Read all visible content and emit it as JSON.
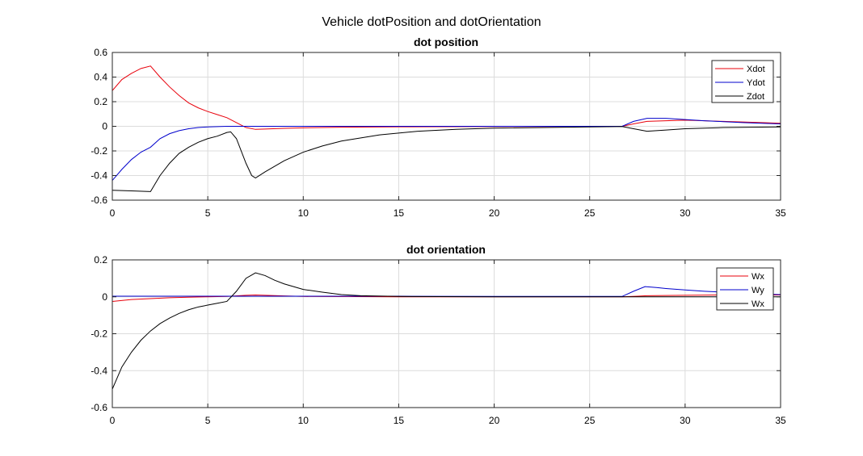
{
  "figure_title": "Vehicle dotPosition and dotOrientation",
  "colors": {
    "red": "#e8000b",
    "blue": "#0000cc",
    "black": "#000000",
    "grid": "#dcdcdc"
  },
  "chart_data": [
    {
      "type": "line",
      "title": "dot position",
      "xlim": [
        0,
        35
      ],
      "ylim": [
        -0.6,
        0.6
      ],
      "xticks": [
        0,
        5,
        10,
        15,
        20,
        25,
        30,
        35
      ],
      "yticks": [
        -0.6,
        -0.4,
        -0.2,
        0,
        0.2,
        0.4,
        0.6
      ],
      "xtick_labels": [
        "0",
        "5",
        "10",
        "15",
        "20",
        "25",
        "30",
        "35"
      ],
      "ytick_labels": [
        "-0.6",
        "-0.4",
        "-0.2",
        "0",
        "0.2",
        "0.4",
        "0.6"
      ],
      "grid": true,
      "legend": "top-right",
      "series": [
        {
          "name": "Xdot",
          "color": "#e8000b",
          "x": [
            0,
            0.5,
            1,
            1.5,
            2,
            2.5,
            3,
            3.5,
            4,
            4.5,
            5,
            5.5,
            6,
            6.5,
            7,
            7.5,
            8,
            9,
            10,
            12,
            15,
            20,
            25,
            26.7,
            27.3,
            28,
            29,
            30,
            31,
            32,
            33,
            34,
            35
          ],
          "y": [
            0.29,
            0.38,
            0.43,
            0.47,
            0.49,
            0.4,
            0.32,
            0.25,
            0.19,
            0.15,
            0.12,
            0.095,
            0.07,
            0.03,
            -0.01,
            -0.025,
            -0.022,
            -0.016,
            -0.012,
            -0.007,
            -0.004,
            -0.002,
            -0.001,
            0.0,
            0.02,
            0.04,
            0.045,
            0.05,
            0.045,
            0.04,
            0.035,
            0.03,
            0.025
          ]
        },
        {
          "name": "Ydot",
          "color": "#0000cc",
          "x": [
            0,
            0.5,
            1,
            1.5,
            2,
            2.5,
            3,
            3.5,
            4,
            4.5,
            5,
            6,
            7,
            8,
            10,
            15,
            20,
            25,
            26.7,
            27.3,
            28,
            29,
            30,
            31,
            32,
            33,
            34,
            35
          ],
          "y": [
            -0.44,
            -0.35,
            -0.27,
            -0.21,
            -0.17,
            -0.1,
            -0.06,
            -0.035,
            -0.02,
            -0.01,
            -0.005,
            0.0,
            0.0,
            0.0,
            0.0,
            0.0,
            0.0,
            0.0,
            0.0,
            0.04,
            0.065,
            0.065,
            0.055,
            0.045,
            0.038,
            0.03,
            0.025,
            0.02
          ]
        },
        {
          "name": "Zdot",
          "color": "#000000",
          "x": [
            0,
            1,
            2,
            2.5,
            3,
            3.5,
            4,
            4.5,
            5,
            5.5,
            6,
            6.2,
            6.5,
            7,
            7.3,
            7.5,
            8,
            9,
            10,
            11,
            12,
            14,
            16,
            18,
            20,
            25,
            26.7,
            27.3,
            28,
            29,
            30,
            32,
            35
          ],
          "y": [
            -0.52,
            -0.525,
            -0.53,
            -0.4,
            -0.3,
            -0.22,
            -0.17,
            -0.13,
            -0.1,
            -0.08,
            -0.05,
            -0.045,
            -0.1,
            -0.3,
            -0.4,
            -0.42,
            -0.37,
            -0.28,
            -0.21,
            -0.16,
            -0.12,
            -0.07,
            -0.04,
            -0.025,
            -0.015,
            -0.005,
            -0.002,
            -0.02,
            -0.04,
            -0.03,
            -0.02,
            -0.01,
            -0.005
          ]
        }
      ]
    },
    {
      "type": "line",
      "title": "dot orientation",
      "xlim": [
        0,
        35
      ],
      "ylim": [
        -0.6,
        0.2
      ],
      "xticks": [
        0,
        5,
        10,
        15,
        20,
        25,
        30,
        35
      ],
      "yticks": [
        -0.6,
        -0.4,
        -0.2,
        0,
        0.2
      ],
      "xtick_labels": [
        "0",
        "5",
        "10",
        "15",
        "20",
        "25",
        "30",
        "35"
      ],
      "ytick_labels": [
        "-0.6",
        "-0.4",
        "-0.2",
        "0",
        "0.2"
      ],
      "grid": true,
      "legend": "top-right",
      "series": [
        {
          "name": "Wx",
          "color": "#e8000b",
          "x": [
            0,
            1,
            2,
            3,
            4,
            5,
            6,
            7,
            7.5,
            8,
            9,
            10,
            15,
            20,
            25,
            26.7,
            27.5,
            28,
            30,
            32,
            35
          ],
          "y": [
            -0.025,
            -0.015,
            -0.01,
            -0.005,
            -0.002,
            0.0,
            0.002,
            0.008,
            0.01,
            0.008,
            0.005,
            0.002,
            0.0,
            0.0,
            0.0,
            0.0,
            0.003,
            0.006,
            0.008,
            0.01,
            0.01
          ]
        },
        {
          "name": "Wy",
          "color": "#0000cc",
          "x": [
            0,
            5,
            10,
            15,
            20,
            25,
            26.7,
            27.3,
            27.9,
            28.5,
            29,
            30,
            31,
            32,
            33,
            34,
            35
          ],
          "y": [
            0.003,
            0.003,
            0.003,
            0.003,
            0.002,
            0.002,
            0.002,
            0.03,
            0.055,
            0.05,
            0.045,
            0.037,
            0.03,
            0.025,
            0.02,
            0.015,
            0.012
          ]
        },
        {
          "name": "Wx",
          "color": "#000000",
          "x": [
            0,
            0.5,
            1,
            1.5,
            2,
            2.5,
            3,
            3.5,
            4,
            4.5,
            5,
            5.5,
            6,
            6.5,
            7,
            7.5,
            8,
            8.5,
            9,
            10,
            11,
            12,
            13,
            15,
            20,
            25,
            30,
            35
          ],
          "y": [
            -0.5,
            -0.38,
            -0.3,
            -0.235,
            -0.185,
            -0.145,
            -0.115,
            -0.09,
            -0.07,
            -0.055,
            -0.045,
            -0.035,
            -0.025,
            0.03,
            0.1,
            0.13,
            0.115,
            0.09,
            0.07,
            0.04,
            0.025,
            0.012,
            0.006,
            0.002,
            0.0,
            0.0,
            0.0,
            0.0
          ]
        }
      ]
    }
  ]
}
